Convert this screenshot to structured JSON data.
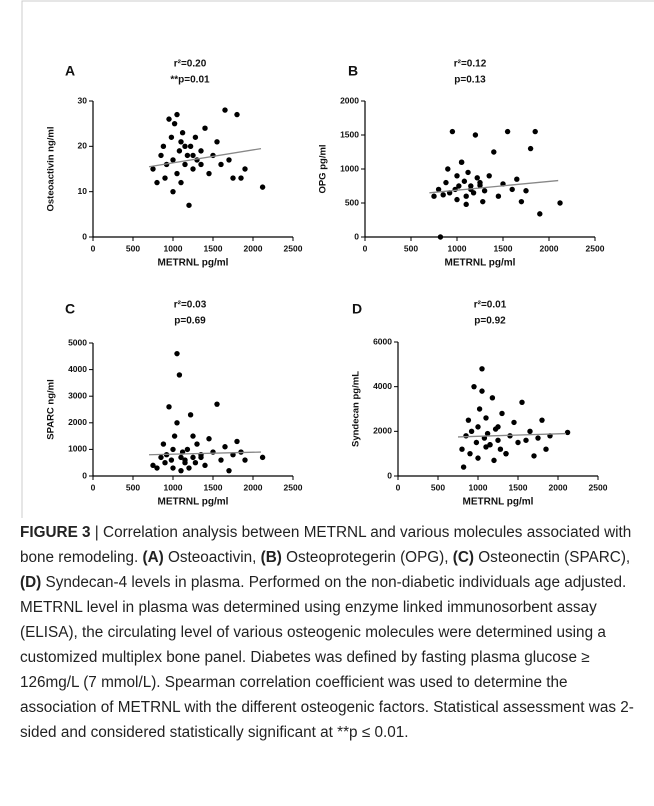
{
  "chart_data": [
    {
      "type": "scatter",
      "panel": "A",
      "title": "r²=0.20",
      "subtitle": "**p=0.01",
      "x_label": "METRNL pg/ml",
      "y_label": "Osteoactivin ng/ml",
      "color": "#000000",
      "x": [
        750,
        800,
        850,
        880,
        900,
        920,
        950,
        980,
        1000,
        1000,
        1020,
        1050,
        1080,
        1100,
        1100,
        1120,
        1150,
        1180,
        1200,
        1220,
        1250,
        1280,
        1300,
        1350,
        1400,
        1450,
        1500,
        1550,
        1600,
        1650,
        1700,
        1750,
        1800,
        1850,
        1900,
        2120,
        1050,
        1150,
        1250,
        1350
      ],
      "values": [
        15,
        12,
        18,
        20,
        13,
        16,
        26,
        22,
        10,
        17,
        25,
        14,
        19,
        21,
        12,
        23,
        16,
        18,
        7,
        20,
        15,
        22,
        17,
        19,
        24,
        14,
        18,
        21,
        16,
        28,
        17,
        13,
        27,
        13,
        15,
        11,
        27,
        20,
        18,
        16
      ],
      "trend": {
        "x": [
          700,
          2100
        ],
        "values": [
          15.5,
          19.5
        ]
      },
      "xlim": [
        0,
        2500
      ],
      "xticks": [
        0,
        500,
        1000,
        1500,
        2000,
        2500
      ],
      "ylim": [
        0,
        30
      ],
      "yticks": [
        0,
        10,
        20,
        30
      ]
    },
    {
      "type": "scatter",
      "panel": "B",
      "title": "r²=0.12",
      "subtitle": "p=0.13",
      "x_label": "METRNL pg/ml",
      "y_label": "OPG pg/ml",
      "color": "#000000",
      "x": [
        750,
        800,
        850,
        880,
        900,
        920,
        950,
        980,
        1000,
        1000,
        1020,
        1050,
        1080,
        1100,
        1100,
        1120,
        1150,
        1180,
        1200,
        1220,
        1250,
        1280,
        1300,
        1350,
        1400,
        1450,
        1500,
        1550,
        1600,
        1650,
        1700,
        1750,
        1800,
        1850,
        1900,
        2120,
        1050,
        1150,
        1250,
        820
      ],
      "values": [
        600,
        700,
        620,
        800,
        1000,
        650,
        1550,
        700,
        550,
        900,
        750,
        1100,
        820,
        600,
        480,
        950,
        700,
        650,
        1500,
        870,
        760,
        520,
        680,
        900,
        1250,
        600,
        780,
        1550,
        700,
        850,
        520,
        680,
        1300,
        1550,
        340,
        500,
        1100,
        750,
        800,
        0
      ],
      "trend": {
        "x": [
          700,
          2100
        ],
        "values": [
          650,
          830
        ]
      },
      "xlim": [
        0,
        2500
      ],
      "xticks": [
        0,
        500,
        1000,
        1500,
        2000,
        2500
      ],
      "ylim": [
        0,
        2000
      ],
      "yticks": [
        0,
        500,
        1000,
        1500,
        2000
      ]
    },
    {
      "type": "scatter",
      "panel": "C",
      "title": "r²=0.03",
      "subtitle": "p=0.69",
      "x_label": "METRNL pg/ml",
      "y_label": "SPARC ng/ml",
      "color": "#000000",
      "x": [
        750,
        800,
        850,
        880,
        900,
        920,
        950,
        980,
        1000,
        1000,
        1020,
        1050,
        1080,
        1100,
        1100,
        1120,
        1150,
        1180,
        1200,
        1220,
        1250,
        1280,
        1300,
        1350,
        1400,
        1450,
        1500,
        1550,
        1600,
        1650,
        1700,
        1750,
        1800,
        1850,
        1900,
        2120,
        1050,
        1150,
        1250,
        1350
      ],
      "values": [
        400,
        300,
        700,
        1200,
        500,
        800,
        2600,
        600,
        300,
        1000,
        1500,
        4600,
        3800,
        700,
        200,
        900,
        600,
        1000,
        300,
        2300,
        700,
        500,
        1200,
        800,
        400,
        1400,
        900,
        2700,
        600,
        1100,
        200,
        800,
        1300,
        900,
        600,
        700,
        2000,
        500,
        1500,
        700
      ],
      "trend": {
        "x": [
          700,
          2100
        ],
        "values": [
          800,
          900
        ]
      },
      "xlim": [
        0,
        2500
      ],
      "xticks": [
        0,
        500,
        1000,
        1500,
        2000,
        2500
      ],
      "ylim": [
        0,
        5000
      ],
      "yticks": [
        0,
        1000,
        2000,
        3000,
        4000,
        5000
      ]
    },
    {
      "type": "scatter",
      "panel": "D",
      "title": "r²=0.01",
      "subtitle": "p=0.92",
      "x_label": "METRNL pg/ml",
      "y_label": "Syndecan pg/mL",
      "color": "#000000",
      "x": [
        800,
        820,
        850,
        880,
        900,
        920,
        950,
        980,
        1000,
        1000,
        1020,
        1050,
        1080,
        1100,
        1100,
        1120,
        1150,
        1180,
        1200,
        1220,
        1250,
        1280,
        1300,
        1350,
        1400,
        1450,
        1500,
        1550,
        1600,
        1650,
        1700,
        1750,
        1800,
        1850,
        1900,
        2120,
        1050,
        1150,
        1250,
        1350
      ],
      "values": [
        1200,
        400,
        1800,
        2500,
        1000,
        2000,
        4000,
        1500,
        800,
        2200,
        3000,
        4800,
        1700,
        2600,
        1300,
        1900,
        1400,
        3500,
        700,
        2100,
        1600,
        1200,
        2800,
        1000,
        1800,
        2400,
        1500,
        3300,
        1600,
        2000,
        900,
        1700,
        2500,
        1200,
        1800,
        1950,
        3800,
        1400,
        2200,
        1000
      ],
      "trend": {
        "x": [
          750,
          2100
        ],
        "values": [
          1750,
          1900
        ]
      },
      "xlim": [
        0,
        2500
      ],
      "xticks": [
        0,
        500,
        1000,
        1500,
        2000,
        2500
      ],
      "ylim": [
        0,
        6000
      ],
      "yticks": [
        0,
        2000,
        4000,
        6000
      ]
    }
  ],
  "caption": [
    {
      "text": "FIGURE 3",
      "bold": true
    },
    {
      "text": " | Correlation analysis between METRNL and various molecules associated with bone remodeling. ",
      "bold": false
    },
    {
      "text": "(A)",
      "bold": true
    },
    {
      "text": " Osteoactivin, ",
      "bold": false
    },
    {
      "text": "(B)",
      "bold": true
    },
    {
      "text": " Osteoprotegerin (OPG), ",
      "bold": false
    },
    {
      "text": "(C)",
      "bold": true
    },
    {
      "text": " Osteonectin (SPARC), ",
      "bold": false
    },
    {
      "text": "(D)",
      "bold": true
    },
    {
      "text": " Syndecan-4 levels in plasma. Performed on the non-diabetic individuals age adjusted. METRNL level in plasma was determined using enzyme linked immunosorbent assay (ELISA), the circulating level of various osteogenic molecules were determined using a customized multiplex bone panel. Diabetes was defined by fasting plasma glucose ≥ 126mg/L (7 mmol/L). Spearman correlation coefficient was used to determine the association of METRNL with the different osteogenic factors. Statistical assessment was 2-sided and considered statistically significant at **p ≤ 0.01.",
      "bold": false
    }
  ]
}
